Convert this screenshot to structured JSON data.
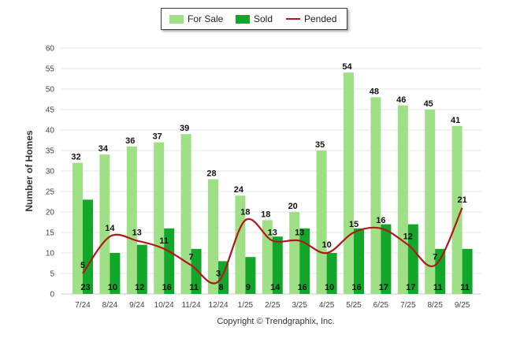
{
  "legend": {
    "for_sale": "For Sale",
    "sold": "Sold",
    "pended": "Pended"
  },
  "footer": {
    "copyright": "Copyright © Trendgraphix, Inc."
  },
  "colors": {
    "for_sale": "#9fdf86",
    "sold": "#12a62a",
    "pended": "#b3161b",
    "grid": "#e4e4e4",
    "axis": "#c8c8c8"
  },
  "chart_data": {
    "type": "bar",
    "title": "",
    "xlabel": "",
    "ylabel": "Number of Homes",
    "ylim": [
      0,
      60
    ],
    "yticks": [
      0,
      5,
      10,
      15,
      20,
      25,
      30,
      35,
      40,
      45,
      50,
      55,
      60
    ],
    "categories": [
      "7/24",
      "8/24",
      "9/24",
      "10/24",
      "11/24",
      "12/24",
      "1/25",
      "2/25",
      "3/25",
      "4/25",
      "5/25",
      "6/25",
      "7/25",
      "8/25",
      "9/25"
    ],
    "series": [
      {
        "name": "For Sale",
        "kind": "bar",
        "values": [
          32,
          34,
          36,
          37,
          39,
          28,
          24,
          18,
          20,
          35,
          54,
          48,
          46,
          45,
          41
        ]
      },
      {
        "name": "Sold",
        "kind": "bar",
        "values": [
          23,
          10,
          12,
          16,
          11,
          8,
          9,
          14,
          16,
          10,
          16,
          17,
          17,
          11,
          11
        ]
      },
      {
        "name": "Pended",
        "kind": "line",
        "values": [
          5,
          14,
          13,
          11,
          7,
          3,
          18,
          13,
          13,
          10,
          15,
          16,
          12,
          7,
          21
        ]
      }
    ]
  }
}
